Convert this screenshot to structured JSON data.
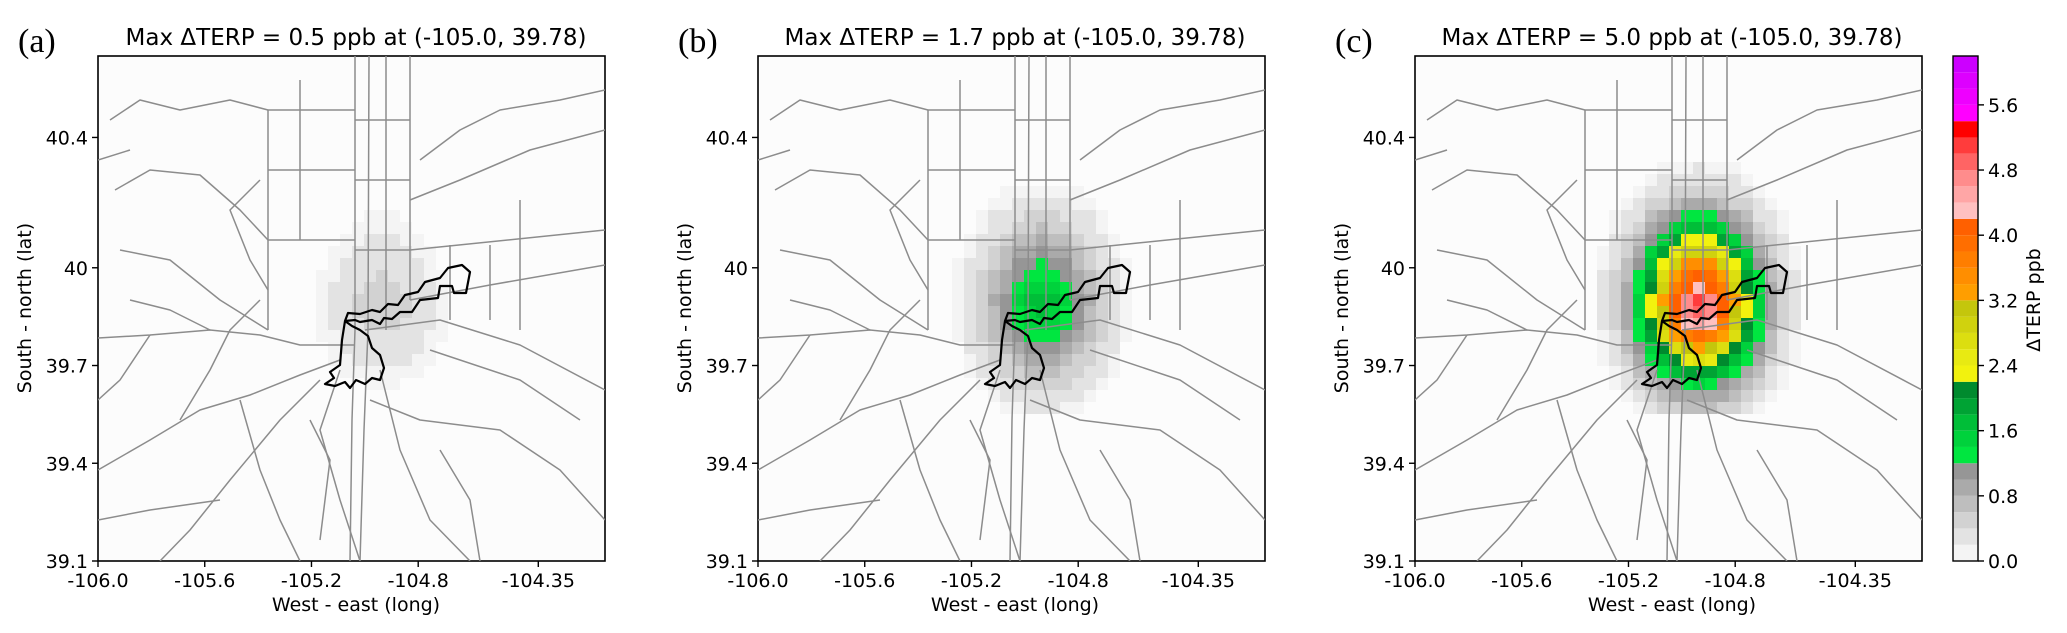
{
  "figure": {
    "panels": [
      {
        "id": "a",
        "label": "(a)",
        "title": "Max ΔTERP =  0.5 ppb at (-105.0, 39.78)",
        "max_ppb": 0.5
      },
      {
        "id": "b",
        "label": "(b)",
        "title": "Max ΔTERP =  1.7 ppb at (-105.0, 39.78)",
        "max_ppb": 1.7
      },
      {
        "id": "c",
        "label": "(c)",
        "title": "Max ΔTERP =  5.0 ppb at (-105.0, 39.78)",
        "max_ppb": 5.0
      }
    ],
    "x_axis": {
      "label": "West - east (long)",
      "ticks": [
        "-106.0",
        "-105.6",
        "-105.2",
        "-104.8",
        "-104.35"
      ],
      "range": [
        -106.0,
        -104.1
      ]
    },
    "y_axis": {
      "label": "South - north (lat)",
      "ticks": [
        "39.1",
        "39.4",
        "39.7",
        "40",
        "40.4"
      ],
      "range": [
        39.1,
        40.65
      ]
    },
    "colorbar": {
      "label": "ΔTERP ppb",
      "ticks": [
        "0.0",
        "0.8",
        "1.6",
        "2.4",
        "3.2",
        "4.0",
        "4.8",
        "5.6"
      ],
      "range": [
        0.0,
        6.2
      ],
      "bin_width": 0.2,
      "colors": [
        "#f4f4f4",
        "#e3e3e3",
        "#d2d2d2",
        "#bebebe",
        "#aaaaaa",
        "#969696",
        "#00e640",
        "#00d23c",
        "#00be38",
        "#00a334",
        "#008a2e",
        "#f2f20e",
        "#e8ea12",
        "#dcde10",
        "#d0d20e",
        "#c4c60c",
        "#ff9e00",
        "#ff8e00",
        "#ff7e00",
        "#ff6e00",
        "#ff6000",
        "#ffc0c0",
        "#ffa6a6",
        "#ff8c8c",
        "#ff6464",
        "#ff3c3c",
        "#ff0000",
        "#ff00ff",
        "#ee00ff",
        "#dd00ff",
        "#cc00ff"
      ]
    }
  }
}
